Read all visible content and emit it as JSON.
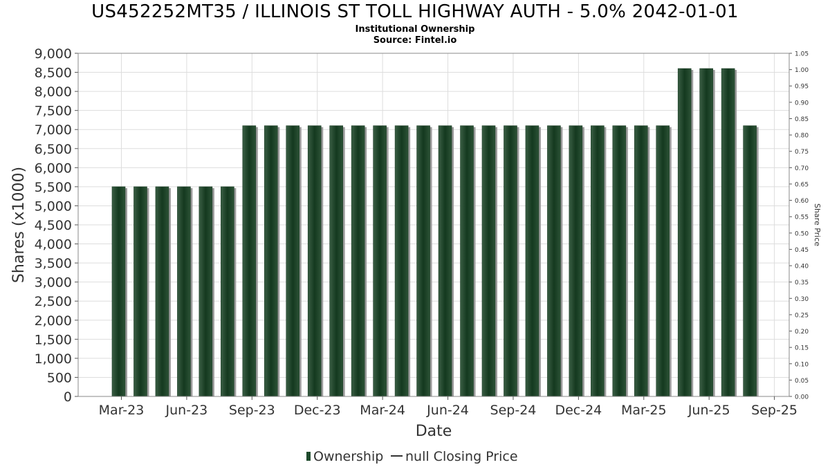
{
  "chart_data": {
    "type": "bar",
    "title": "US452252MT35 / ILLINOIS ST TOLL HIGHWAY AUTH - 5.0% 2042-01-01",
    "subtitle": "Institutional Ownership",
    "source": "Source: Fintel.io",
    "xlabel": "Date",
    "ylabel": "Shares (x1000)",
    "y2label": "Share Price",
    "ylim": [
      0,
      9000
    ],
    "y2lim": [
      0,
      1.05
    ],
    "grid": true,
    "yticks": [
      "0",
      "500",
      "1,000",
      "1,500",
      "2,000",
      "2,500",
      "3,000",
      "3,500",
      "4,000",
      "4,500",
      "5,000",
      "5,500",
      "6,000",
      "6,500",
      "7,000",
      "7,500",
      "8,000",
      "8,500",
      "9,000"
    ],
    "y2ticks": [
      "0.00",
      "0.05",
      "0.10",
      "0.15",
      "0.20",
      "0.25",
      "0.30",
      "0.35",
      "0.40",
      "0.45",
      "0.50",
      "0.55",
      "0.60",
      "0.65",
      "0.70",
      "0.75",
      "0.80",
      "0.85",
      "0.90",
      "0.95",
      "1.00",
      "1.05"
    ],
    "xticks": [
      "Mar-23",
      "Jun-23",
      "Sep-23",
      "Dec-23",
      "Mar-24",
      "Jun-24",
      "Sep-24",
      "Dec-24",
      "Mar-25",
      "Jun-25",
      "Sep-25"
    ],
    "series": [
      {
        "name": "Ownership",
        "color": "#1e4a2c",
        "values": [
          5500,
          5500,
          5500,
          5500,
          5500,
          5500,
          7100,
          7100,
          7100,
          7100,
          7100,
          7100,
          7100,
          7100,
          7100,
          7100,
          7100,
          7100,
          7100,
          7100,
          7100,
          7100,
          7100,
          7100,
          7100,
          7100,
          8600,
          8600,
          8600,
          7100
        ]
      }
    ],
    "legend": {
      "position": "bottom-center",
      "items": [
        "Ownership",
        "null Closing Price"
      ]
    }
  }
}
